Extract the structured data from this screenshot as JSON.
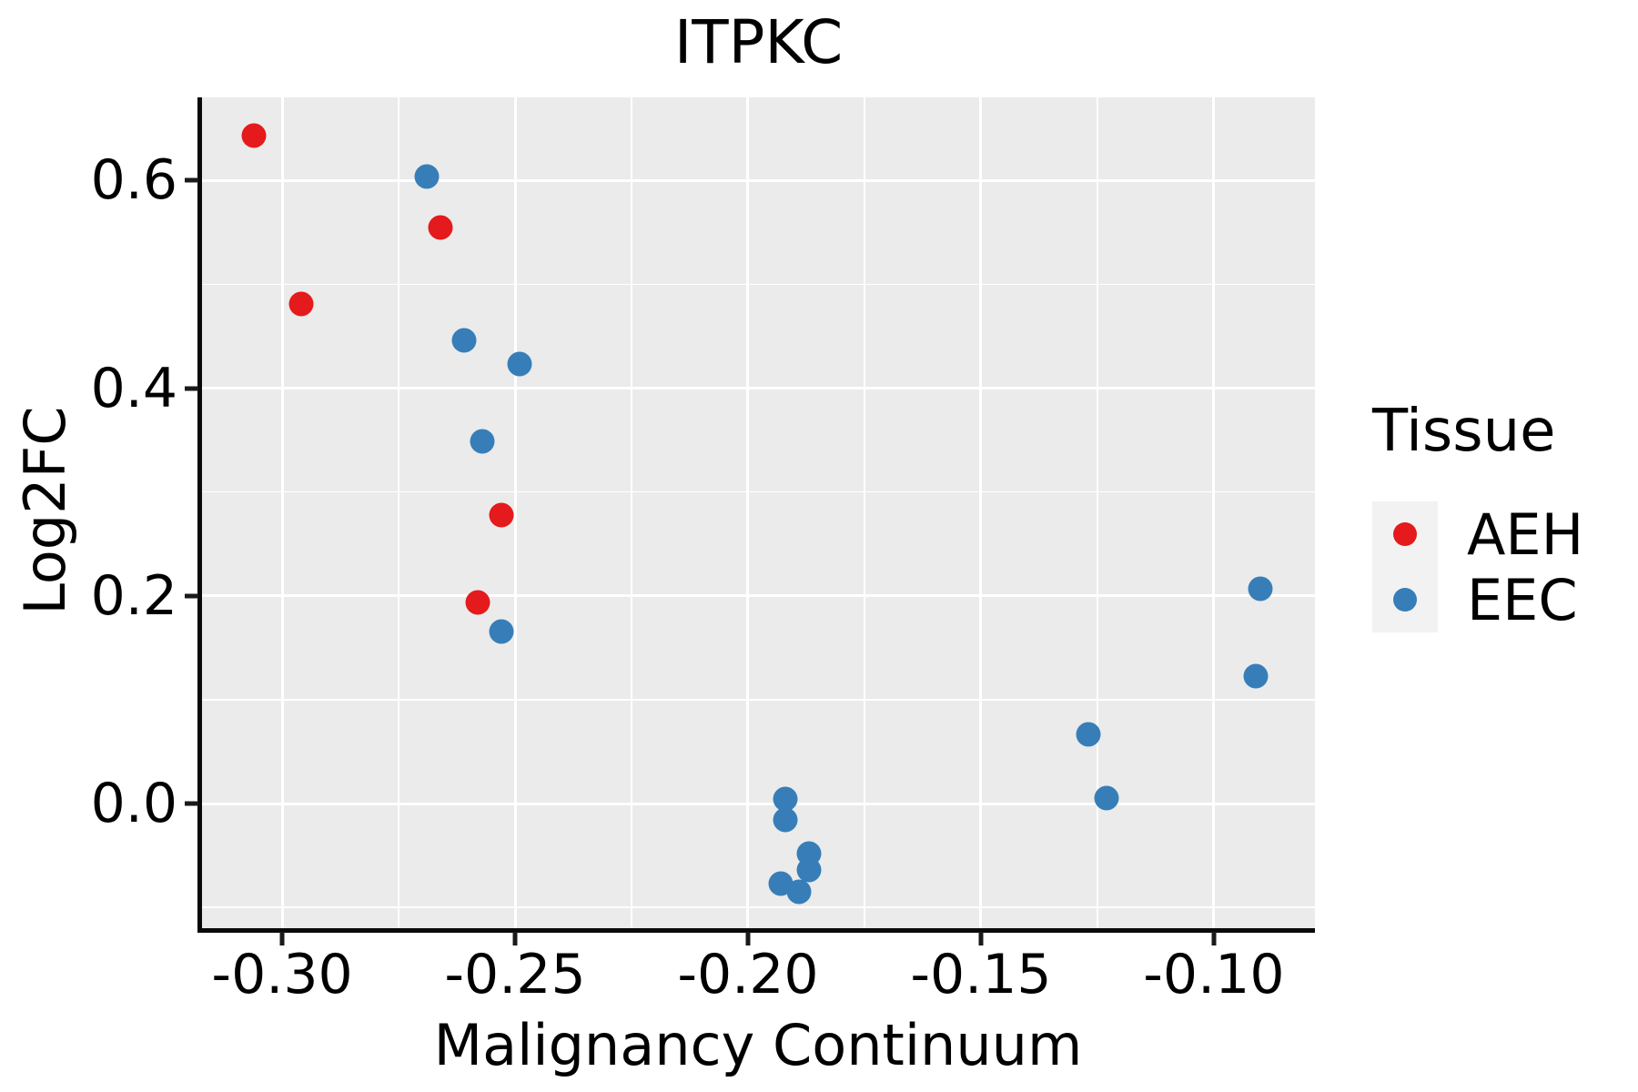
{
  "title": "ITPKC",
  "axes": {
    "x_label": "Malignancy Continuum",
    "y_label": "Log2FC"
  },
  "legend": {
    "title": "Tissue",
    "entries": [
      {
        "label": "AEH",
        "color": "#E41A1C"
      },
      {
        "label": "EEC",
        "color": "#377EB8"
      }
    ]
  },
  "colors": {
    "panel_background": "#EBEBEB",
    "gridline": "#ffffff",
    "legend_key_background": "#F2F2F2",
    "axis_text": "#000000",
    "aeh": "#E41A1C",
    "eec": "#377EB8"
  },
  "chart_data": {
    "type": "scatter",
    "title": "ITPKC",
    "xlabel": "Malignancy Continuum",
    "ylabel": "Log2FC",
    "xlim": [
      -0.3172,
      -0.0783
    ],
    "ylim": [
      -0.12,
      0.68
    ],
    "x_ticks": [
      -0.3,
      -0.25,
      -0.2,
      -0.15,
      -0.1
    ],
    "x_tick_labels": [
      "-0.30",
      "-0.25",
      "-0.20",
      "-0.15",
      "-0.10"
    ],
    "y_ticks": [
      0.0,
      0.2,
      0.4,
      0.6
    ],
    "y_tick_labels": [
      "0.0",
      "0.2",
      "0.4",
      "0.6"
    ],
    "x_minor_ticks": [
      -0.275,
      -0.225,
      -0.175,
      -0.125
    ],
    "y_minor_ticks": [
      -0.1,
      0.1,
      0.3,
      0.5
    ],
    "grid": true,
    "legend_position": "right",
    "series": [
      {
        "name": "AEH",
        "color": "#E41A1C",
        "points": [
          [
            -0.306,
            0.643
          ],
          [
            -0.296,
            0.481
          ],
          [
            -0.266,
            0.555
          ],
          [
            -0.253,
            0.278
          ],
          [
            -0.258,
            0.194
          ]
        ]
      },
      {
        "name": "EEC",
        "color": "#377EB8",
        "points": [
          [
            -0.269,
            0.604
          ],
          [
            -0.261,
            0.446
          ],
          [
            -0.249,
            0.423
          ],
          [
            -0.257,
            0.349
          ],
          [
            -0.253,
            0.166
          ],
          [
            -0.192,
            0.004
          ],
          [
            -0.192,
            -0.016
          ],
          [
            -0.187,
            -0.048
          ],
          [
            -0.187,
            -0.064
          ],
          [
            -0.193,
            -0.077
          ],
          [
            -0.189,
            -0.085
          ],
          [
            -0.127,
            0.067
          ],
          [
            -0.123,
            0.005
          ],
          [
            -0.09,
            0.207
          ],
          [
            -0.091,
            0.123
          ]
        ]
      }
    ]
  }
}
